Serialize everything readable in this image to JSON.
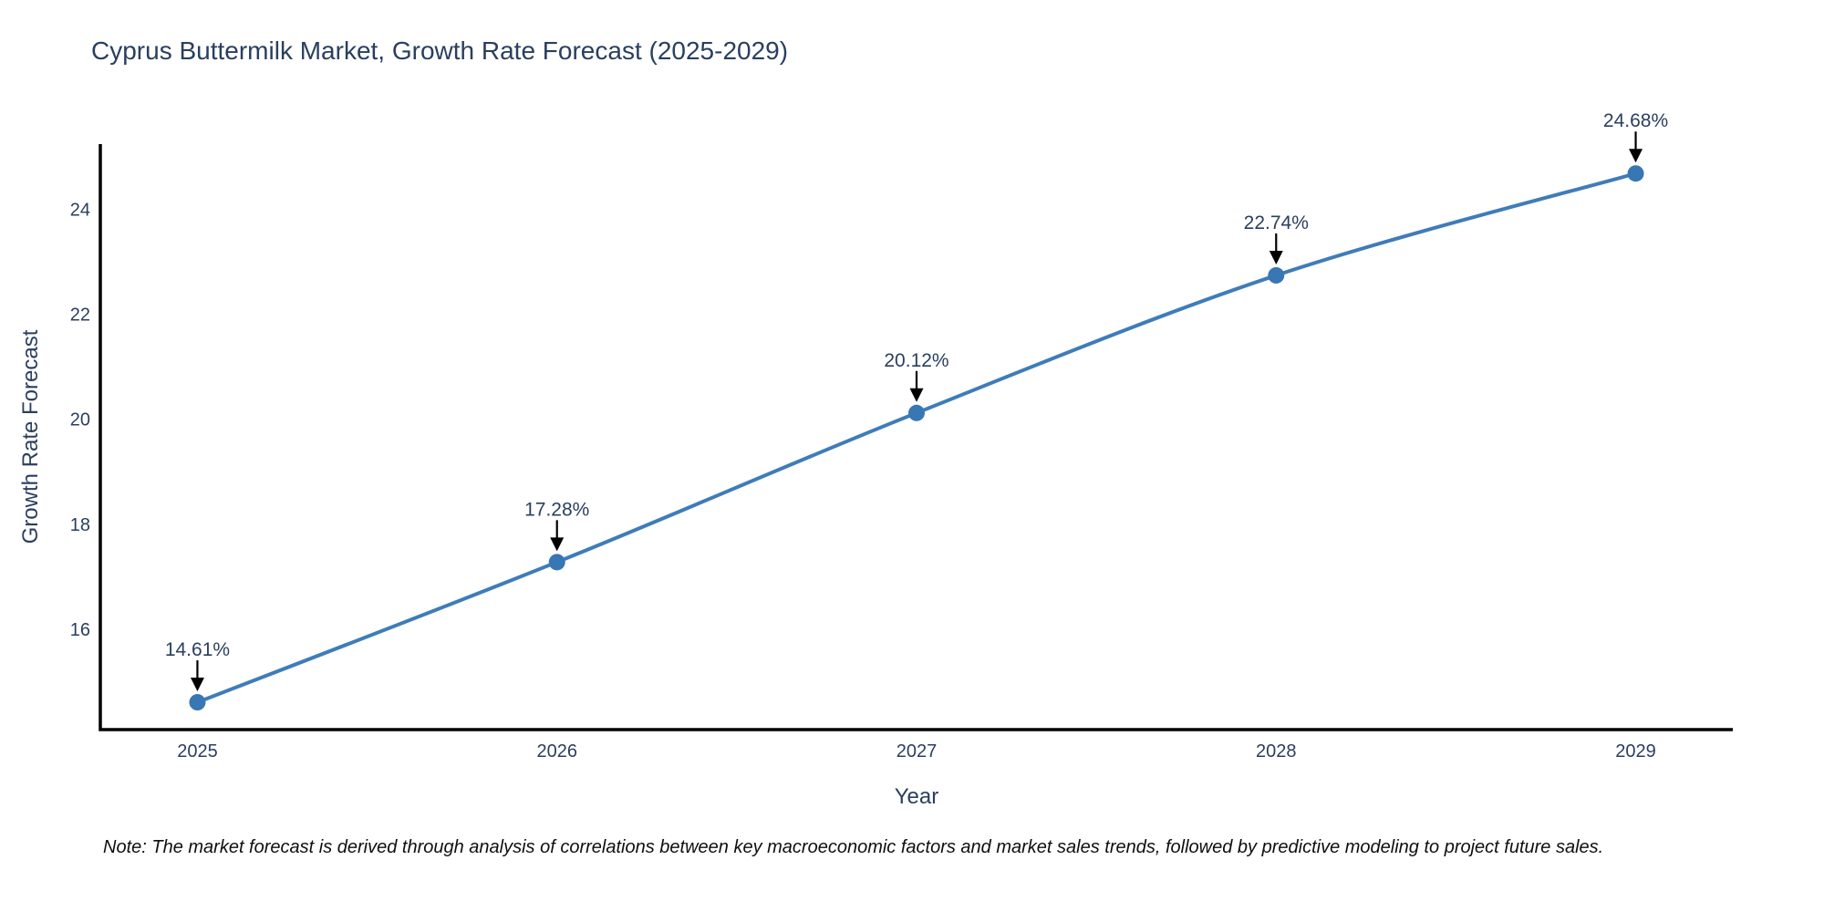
{
  "title": "Cyprus Buttermilk Market, Growth Rate Forecast (2025-2029)",
  "note": "Note: The market forecast is derived through analysis of correlations between key macroeconomic factors and market sales trends, followed by predictive modeling to project future sales.",
  "chart_data": {
    "type": "line",
    "title": "Cyprus Buttermilk Market, Growth Rate Forecast (2025-2029)",
    "xlabel": "Year",
    "ylabel": "Growth Rate Forecast",
    "x": [
      2025,
      2026,
      2027,
      2028,
      2029
    ],
    "series": [
      {
        "name": "Growth Rate Forecast",
        "values": [
          14.61,
          17.28,
          20.12,
          22.74,
          24.68
        ]
      }
    ],
    "point_labels": [
      "14.61%",
      "17.28%",
      "20.12%",
      "22.74%",
      "24.68%"
    ],
    "x_ticks": [
      "2025",
      "2026",
      "2027",
      "2028",
      "2029"
    ],
    "y_ticks": [
      16,
      18,
      20,
      22,
      24
    ],
    "xlim": [
      2024.73,
      2029.27
    ],
    "ylim": [
      14.09,
      25.24
    ],
    "grid": false,
    "legend": "none",
    "line_shape": "spline",
    "marker_size": 9,
    "colors": {
      "line": "#3f7cb9",
      "marker": "#3876b4",
      "axis": "#000000",
      "title_text": "#2a3f5f",
      "tick_text": "#2a3f5f",
      "annotation_text": "#2a3f5f",
      "annotation_arrow": "#000000",
      "note_text": "#0f0f0f"
    }
  }
}
